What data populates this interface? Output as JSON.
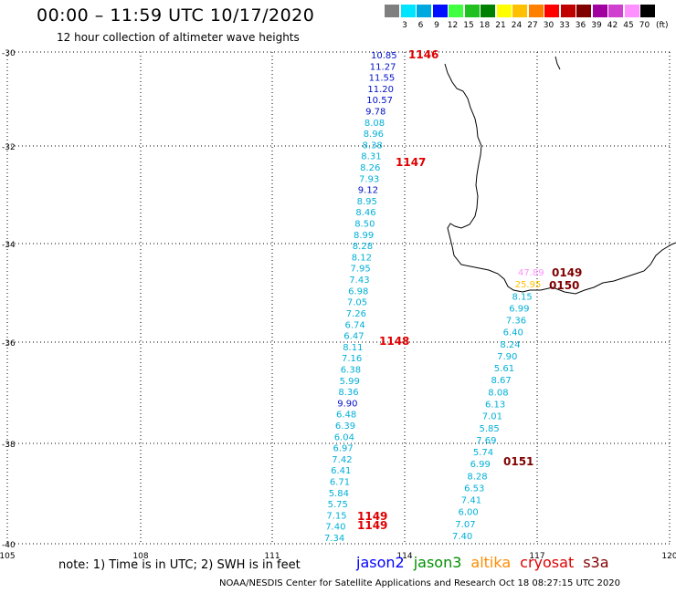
{
  "header": {
    "title": "00:00 – 11:59 UTC 10/17/2020",
    "subtitle": "12 hour collection of altimeter wave heights"
  },
  "legend": {
    "units": "(ft)",
    "colors": [
      {
        "label": "3",
        "color": "#7f7f7f"
      },
      {
        "label": "6",
        "color": "#00e5ff"
      },
      {
        "label": "9",
        "color": "#00a8e0"
      },
      {
        "label": "12",
        "color": "#0010ff"
      },
      {
        "label": "15",
        "color": "#40ff40"
      },
      {
        "label": "18",
        "color": "#20c020"
      },
      {
        "label": "21",
        "color": "#008000"
      },
      {
        "label": "24",
        "color": "#ffff00"
      },
      {
        "label": "27",
        "color": "#ffc000"
      },
      {
        "label": "30",
        "color": "#ff8000"
      },
      {
        "label": "33",
        "color": "#ff0000"
      },
      {
        "label": "36",
        "color": "#c00000"
      },
      {
        "label": "39",
        "color": "#800000"
      },
      {
        "label": "42",
        "color": "#a000a0"
      },
      {
        "label": "45",
        "color": "#d040d0"
      },
      {
        "label": "70",
        "color": "#ff90ff"
      },
      {
        "label": "",
        "color": "#000000"
      }
    ]
  },
  "axes": {
    "lat_labels": [
      "-30",
      "-32",
      "-34",
      "-36",
      "-38",
      "-40"
    ],
    "lon_labels": [
      "105",
      "108",
      "111",
      "114",
      "117",
      "120"
    ]
  },
  "tracks": [
    {
      "name": "west",
      "color": "#00b0d8",
      "points": [
        {
          "v": "10.85",
          "c": "#0010c8"
        },
        {
          "v": "11.27",
          "c": "#0010c8"
        },
        {
          "v": "11.55",
          "c": "#0010c8"
        },
        {
          "v": "11.20",
          "c": "#0010c8"
        },
        {
          "v": "10.57",
          "c": "#0010c8"
        },
        {
          "v": "9.78",
          "c": "#0010c8"
        },
        {
          "v": "8.08"
        },
        {
          "v": "8.96"
        },
        {
          "v": "8.38"
        },
        {
          "v": "8.31"
        },
        {
          "v": "8.26"
        },
        {
          "v": "7.93"
        },
        {
          "v": "9.12",
          "c": "#0010c8"
        },
        {
          "v": "8.95"
        },
        {
          "v": "8.46"
        },
        {
          "v": "8.50"
        },
        {
          "v": "8.99"
        },
        {
          "v": "8.28"
        },
        {
          "v": "8.12"
        },
        {
          "v": "7.95"
        },
        {
          "v": "7.43"
        },
        {
          "v": "6.98"
        },
        {
          "v": "7.05"
        },
        {
          "v": "7.26"
        },
        {
          "v": "6.74"
        },
        {
          "v": "6.47"
        },
        {
          "v": "8.11"
        },
        {
          "v": "7.16"
        },
        {
          "v": "6.38"
        },
        {
          "v": "5.99"
        },
        {
          "v": "8.36"
        },
        {
          "v": "9.90",
          "c": "#0010c8"
        },
        {
          "v": "6.48"
        },
        {
          "v": "6.39"
        },
        {
          "v": "6.04"
        },
        {
          "v": "6.97"
        },
        {
          "v": "7.42"
        },
        {
          "v": "6.41"
        },
        {
          "v": "6.71"
        },
        {
          "v": "5.84"
        },
        {
          "v": "5.75"
        },
        {
          "v": "7.15"
        },
        {
          "v": "7.40"
        },
        {
          "v": "7.34"
        }
      ]
    },
    {
      "name": "east",
      "color": "#00b0d8",
      "points": [
        {
          "v": "47.89",
          "c": "#ff90ff"
        },
        {
          "v": "25.95",
          "c": "#ffc000"
        },
        {
          "v": "8.15"
        },
        {
          "v": "6.99"
        },
        {
          "v": "7.36"
        },
        {
          "v": "6.40"
        },
        {
          "v": "8.24"
        },
        {
          "v": "7.90"
        },
        {
          "v": "5.61"
        },
        {
          "v": "8.67"
        },
        {
          "v": "8.08"
        },
        {
          "v": "6.13"
        },
        {
          "v": "7.01"
        },
        {
          "v": "5.85"
        },
        {
          "v": "7.69"
        },
        {
          "v": "5.74"
        },
        {
          "v": "6.99"
        },
        {
          "v": "8.28"
        },
        {
          "v": "6.53"
        },
        {
          "v": "7.41"
        },
        {
          "v": "6.00"
        },
        {
          "v": "7.07"
        },
        {
          "v": "7.40"
        }
      ]
    }
  ],
  "time_labels": [
    {
      "text": "1146",
      "color": "#e00000"
    },
    {
      "text": "1147",
      "color": "#e00000"
    },
    {
      "text": "1148",
      "color": "#e00000"
    },
    {
      "text": "1149",
      "color": "#e00000"
    },
    {
      "text": "1149",
      "color": "#e00000"
    },
    {
      "text": "0149",
      "color": "#800000"
    },
    {
      "text": "0150",
      "color": "#800000"
    },
    {
      "text": "0151",
      "color": "#800000"
    }
  ],
  "footer": {
    "note": "note: 1) Time is in UTC; 2) SWH is in feet",
    "satellites": [
      {
        "name": "jason2",
        "color": "#0000ff"
      },
      {
        "name": "jason3",
        "color": "#009000"
      },
      {
        "name": "altika",
        "color": "#ff8c00"
      },
      {
        "name": "cryosat",
        "color": "#e00000"
      },
      {
        "name": "s3a",
        "color": "#800000"
      }
    ],
    "credit": "NOAA/NESDIS Center for Satellite Applications and Research   Oct 18 08:27:15 UTC 2020"
  }
}
